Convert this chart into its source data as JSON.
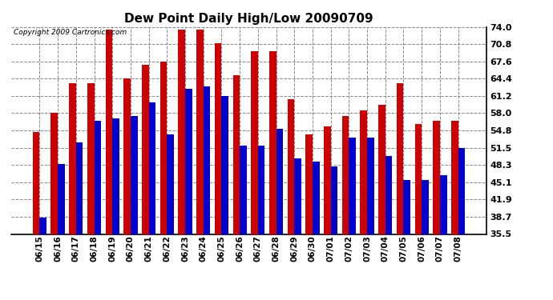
{
  "title": "Dew Point Daily High/Low 20090709",
  "copyright": "Copyright 2009 Cartronics.com",
  "dates": [
    "06/15",
    "06/16",
    "06/17",
    "06/18",
    "06/19",
    "06/20",
    "06/21",
    "06/22",
    "06/23",
    "06/24",
    "06/25",
    "06/26",
    "06/27",
    "06/28",
    "06/29",
    "06/30",
    "07/01",
    "07/02",
    "07/03",
    "07/04",
    "07/05",
    "07/06",
    "07/07",
    "07/08"
  ],
  "highs": [
    54.5,
    58.0,
    63.5,
    63.5,
    73.5,
    64.5,
    67.0,
    67.5,
    73.5,
    73.5,
    71.0,
    65.0,
    69.5,
    69.5,
    60.5,
    54.0,
    55.5,
    57.5,
    58.5,
    59.5,
    63.5,
    56.0,
    56.5,
    56.5
  ],
  "lows": [
    38.5,
    48.5,
    52.5,
    56.5,
    57.0,
    57.5,
    60.0,
    54.0,
    62.5,
    63.0,
    61.2,
    52.0,
    52.0,
    55.0,
    49.5,
    49.0,
    48.0,
    53.5,
    53.5,
    50.0,
    45.5,
    45.5,
    46.5,
    51.5
  ],
  "high_color": "#cc0000",
  "low_color": "#0000cc",
  "bg_color": "#ffffff",
  "plot_bg_color": "#ffffff",
  "grid_color": "#888888",
  "ylim": [
    35.5,
    74.0
  ],
  "yticks": [
    35.5,
    38.7,
    41.9,
    45.1,
    48.3,
    51.5,
    54.8,
    58.0,
    61.2,
    64.4,
    67.6,
    70.8,
    74.0
  ],
  "bar_width": 0.38
}
